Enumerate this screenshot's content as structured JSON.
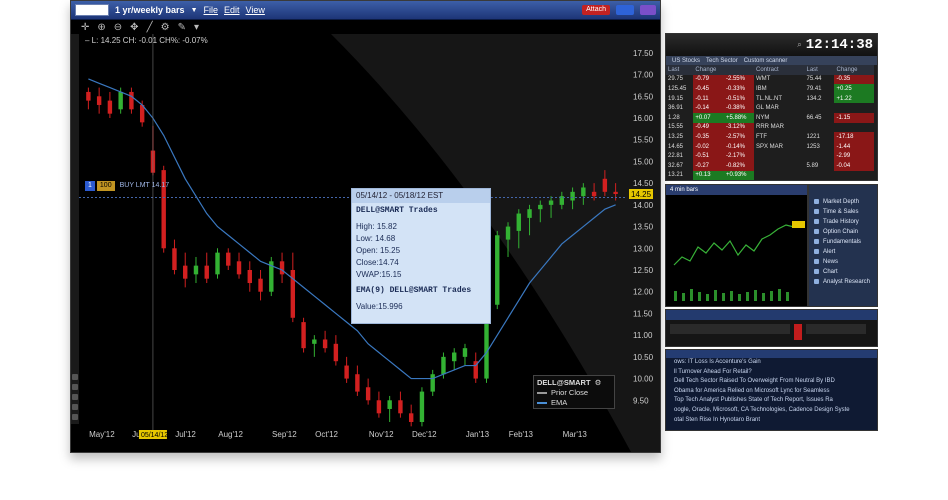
{
  "main_window": {
    "symbol_input": "",
    "title": "1 yr/weekly bars",
    "menu": [
      "File",
      "Edit",
      "View"
    ],
    "buttons": {
      "attach": "Attach",
      "blue": "",
      "purple": ""
    },
    "ohlc_readout": "– L: 14.25 CH: -0.01 CH%: -0.07%",
    "order": {
      "side_label": "BUY LMT 14.17",
      "qty": "1",
      "marker": "100"
    },
    "price_tag": "14.25"
  },
  "tooltip": {
    "date_range": "05/14/12 - 05/18/12 EST",
    "series1": "DELL@SMART Trades",
    "lines": [
      "High: 15.82",
      "Low: 14.68",
      "Open: 15.25",
      "Close:14.74",
      "VWAP:15.15"
    ],
    "series2": "EMA(9) DELL@SMART Trades",
    "value": "Value:15.996"
  },
  "legend": {
    "title": "DELL@SMART",
    "rows": [
      {
        "label": "Prior Close",
        "color": "#999999"
      },
      {
        "label": "EMA",
        "color": "#4a8fd6"
      }
    ]
  },
  "chart_data": {
    "type": "candlestick",
    "title": "1 yr/weekly bars",
    "xlabel": "",
    "ylabel": "",
    "ylim": [
      9.0,
      17.75
    ],
    "y_ticks": [
      "17.50",
      "17.00",
      "16.50",
      "16.00",
      "15.50",
      "15.00",
      "14.50",
      "14.00",
      "13.50",
      "13.00",
      "12.50",
      "12.00",
      "11.50",
      "11.00",
      "10.50",
      "10.00",
      "9.50"
    ],
    "x_ticks": [
      "May'12",
      "Jun'12",
      "Jul'12",
      "Aug'12",
      "Sep'12",
      "Oct'12",
      "Nov'12",
      "Dec'12",
      "Jan'13",
      "Feb'13",
      "Mar'13"
    ],
    "x_tick_highlight": "05/14/12",
    "grid": false,
    "colors": {
      "up": "#33b233",
      "down": "#d22020",
      "ema": "#3a78c0"
    },
    "candles": [
      {
        "o": 16.6,
        "h": 16.7,
        "l": 16.2,
        "c": 16.4
      },
      {
        "o": 16.5,
        "h": 16.7,
        "l": 16.1,
        "c": 16.3
      },
      {
        "o": 16.4,
        "h": 16.6,
        "l": 16.0,
        "c": 16.1
      },
      {
        "o": 16.2,
        "h": 16.7,
        "l": 16.1,
        "c": 16.6
      },
      {
        "o": 16.6,
        "h": 16.7,
        "l": 16.1,
        "c": 16.2
      },
      {
        "o": 16.3,
        "h": 16.4,
        "l": 15.8,
        "c": 15.9
      },
      {
        "o": 15.25,
        "h": 15.82,
        "l": 14.68,
        "c": 14.74
      },
      {
        "o": 14.8,
        "h": 14.9,
        "l": 12.9,
        "c": 13.0
      },
      {
        "o": 13.0,
        "h": 13.2,
        "l": 12.4,
        "c": 12.5
      },
      {
        "o": 12.6,
        "h": 12.9,
        "l": 12.1,
        "c": 12.3
      },
      {
        "o": 12.4,
        "h": 12.8,
        "l": 12.2,
        "c": 12.6
      },
      {
        "o": 12.6,
        "h": 12.9,
        "l": 12.2,
        "c": 12.3
      },
      {
        "o": 12.4,
        "h": 13.0,
        "l": 12.3,
        "c": 12.9
      },
      {
        "o": 12.9,
        "h": 13.0,
        "l": 12.5,
        "c": 12.6
      },
      {
        "o": 12.7,
        "h": 12.9,
        "l": 12.3,
        "c": 12.4
      },
      {
        "o": 12.5,
        "h": 12.7,
        "l": 12.0,
        "c": 12.2
      },
      {
        "o": 12.3,
        "h": 12.5,
        "l": 11.8,
        "c": 12.0
      },
      {
        "o": 12.0,
        "h": 12.8,
        "l": 11.9,
        "c": 12.7
      },
      {
        "o": 12.7,
        "h": 12.9,
        "l": 12.2,
        "c": 12.4
      },
      {
        "o": 12.5,
        "h": 12.9,
        "l": 11.3,
        "c": 11.4
      },
      {
        "o": 11.3,
        "h": 11.4,
        "l": 10.6,
        "c": 10.7
      },
      {
        "o": 10.8,
        "h": 11.0,
        "l": 10.5,
        "c": 10.9
      },
      {
        "o": 10.9,
        "h": 11.1,
        "l": 10.6,
        "c": 10.7
      },
      {
        "o": 10.8,
        "h": 11.0,
        "l": 10.3,
        "c": 10.4
      },
      {
        "o": 10.3,
        "h": 10.5,
        "l": 9.9,
        "c": 10.0
      },
      {
        "o": 10.1,
        "h": 10.3,
        "l": 9.6,
        "c": 9.7
      },
      {
        "o": 9.8,
        "h": 10.0,
        "l": 9.4,
        "c": 9.5
      },
      {
        "o": 9.5,
        "h": 9.7,
        "l": 9.1,
        "c": 9.2
      },
      {
        "o": 9.3,
        "h": 9.6,
        "l": 9.0,
        "c": 9.5
      },
      {
        "o": 9.5,
        "h": 9.7,
        "l": 9.1,
        "c": 9.2
      },
      {
        "o": 9.2,
        "h": 9.4,
        "l": 8.9,
        "c": 9.0
      },
      {
        "o": 9.0,
        "h": 9.8,
        "l": 8.9,
        "c": 9.7
      },
      {
        "o": 9.7,
        "h": 10.2,
        "l": 9.6,
        "c": 10.1
      },
      {
        "o": 10.1,
        "h": 10.6,
        "l": 10.0,
        "c": 10.5
      },
      {
        "o": 10.4,
        "h": 10.7,
        "l": 10.2,
        "c": 10.6
      },
      {
        "o": 10.5,
        "h": 10.8,
        "l": 10.3,
        "c": 10.7
      },
      {
        "o": 10.4,
        "h": 10.6,
        "l": 9.9,
        "c": 10.0
      },
      {
        "o": 10.0,
        "h": 11.8,
        "l": 9.9,
        "c": 11.7
      },
      {
        "o": 11.7,
        "h": 13.4,
        "l": 11.6,
        "c": 13.3
      },
      {
        "o": 13.2,
        "h": 13.6,
        "l": 12.8,
        "c": 13.5
      },
      {
        "o": 13.4,
        "h": 13.9,
        "l": 13.0,
        "c": 13.8
      },
      {
        "o": 13.7,
        "h": 14.0,
        "l": 13.3,
        "c": 13.9
      },
      {
        "o": 13.9,
        "h": 14.1,
        "l": 13.6,
        "c": 14.0
      },
      {
        "o": 14.0,
        "h": 14.2,
        "l": 13.7,
        "c": 14.1
      },
      {
        "o": 14.0,
        "h": 14.3,
        "l": 13.9,
        "c": 14.2
      },
      {
        "o": 14.1,
        "h": 14.4,
        "l": 13.9,
        "c": 14.3
      },
      {
        "o": 14.2,
        "h": 14.5,
        "l": 14.0,
        "c": 14.4
      },
      {
        "o": 14.3,
        "h": 14.5,
        "l": 14.1,
        "c": 14.2
      },
      {
        "o": 14.6,
        "h": 14.8,
        "l": 14.2,
        "c": 14.3
      },
      {
        "o": 14.3,
        "h": 14.5,
        "l": 14.1,
        "c": 14.25
      }
    ],
    "ema": [
      16.9,
      16.8,
      16.7,
      16.6,
      16.5,
      16.3,
      15.996,
      15.6,
      15.1,
      14.6,
      14.2,
      13.8,
      13.5,
      13.3,
      13.1,
      12.9,
      12.7,
      12.6,
      12.5,
      12.3,
      12.1,
      11.9,
      11.7,
      11.5,
      11.3,
      11.1,
      10.8,
      10.6,
      10.4,
      10.2,
      10.0,
      10.0,
      10.0,
      10.1,
      10.2,
      10.3,
      10.3,
      10.6,
      11.0,
      11.4,
      11.8,
      12.2,
      12.5,
      12.8,
      13.1,
      13.3,
      13.5,
      13.7,
      13.9,
      14.0
    ]
  },
  "quote_window": {
    "clock": "12:14:38",
    "tabs": [
      "US Stocks",
      "Tech Sector",
      "Custom scanner"
    ],
    "left_headers": [
      "Last",
      "Change",
      ""
    ],
    "left_rows": [
      [
        "29.75",
        "-0.79",
        "-2.55%"
      ],
      [
        "125.45",
        "-0.45",
        "-0.33%"
      ],
      [
        "19.15",
        "-0.11",
        "-0.51%"
      ],
      [
        "36.91",
        "-0.14",
        "-0.38%"
      ],
      [
        "1.28",
        "+0.07",
        "+5.88%"
      ],
      [
        "15.55",
        "-0.49",
        "-3.12%"
      ],
      [
        "13.25",
        "-0.35",
        "-2.57%"
      ],
      [
        "14.65",
        "-0.02",
        "-0.14%"
      ],
      [
        "22.81",
        "-0.51",
        "-2.17%"
      ],
      [
        "32.67",
        "-0.27",
        "-0.82%"
      ],
      [
        "13.21",
        "+0.13",
        "+0.93%"
      ]
    ],
    "right_headers": [
      "Contract",
      "Last",
      "Change"
    ],
    "right_rows": [
      [
        "WMT",
        "75.44",
        "-0.35"
      ],
      [
        "IBM",
        "79.41",
        "+0.25"
      ],
      [
        "TL.NL.NT",
        "134.2",
        "+1.22"
      ],
      [
        "GL MAR",
        "",
        ""
      ],
      [
        "NYM",
        "66.45",
        "-1.15"
      ],
      [
        "RRR MAR",
        "",
        ""
      ],
      [
        "FTF",
        "1221",
        "-17.18"
      ],
      [
        "SPX MAR",
        "1253",
        "-1.44"
      ],
      [
        "",
        "",
        "-2.99"
      ],
      [
        "",
        "5.89",
        "-0.04"
      ],
      [
        "",
        "",
        ""
      ]
    ]
  },
  "mini_chart": {
    "title": "4 min bars"
  },
  "side_menu": {
    "items": [
      "Market Depth",
      "Time & Sales",
      "Trade History",
      "Option Chain",
      "Fundamentals",
      "Alert",
      "News",
      "Chart",
      "Analyst Research"
    ]
  },
  "news": {
    "lines": [
      "ows: IT Loss Is Accenture's Gain",
      "ll Turnover Ahead For Retail?",
      "Dell Tech Sector Raised To Overweight From Neutral By IBD",
      "Obama for America Relied on Microsoft Lync for Seamless",
      "Top Tech Analyst Publishes State of Tech Report, Issues Ra",
      "oogle, Oracle, Microsoft, CA Technologies, Cadence Design Syste",
      "otal Sten Rise In Hynotaro Brant"
    ]
  }
}
